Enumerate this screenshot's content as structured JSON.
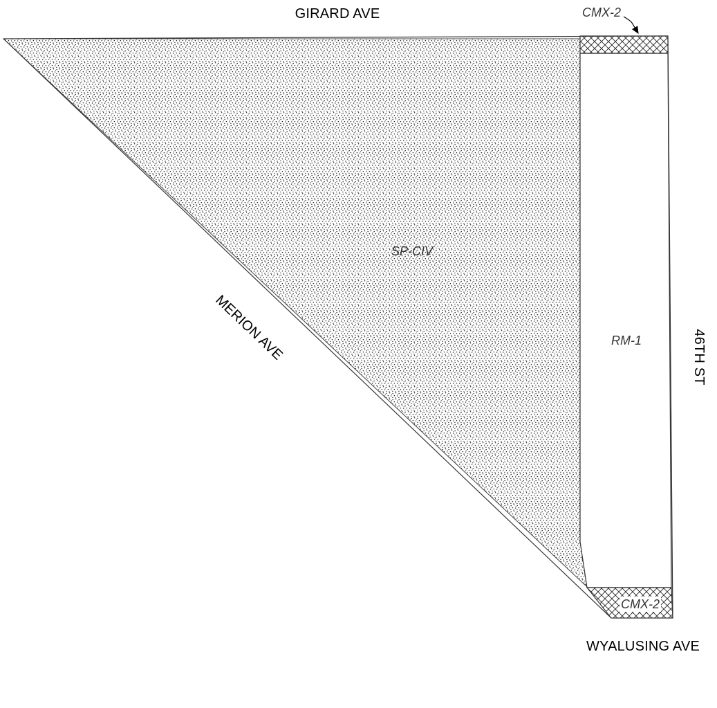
{
  "map": {
    "streets": {
      "north": "GIRARD AVE",
      "east": "46TH ST",
      "diagonal": "MERION AVE",
      "south": "WYALUSING AVE"
    },
    "zones": {
      "sp_civ": "SP-CIV",
      "rm_1": "RM-1",
      "cmx_2_north": "CMX-2",
      "cmx_2_south": "CMX-2"
    },
    "legend_colors": {
      "line": "#333333",
      "stipple": "#222222",
      "hatch": "#222222",
      "background": "#ffffff"
    }
  }
}
